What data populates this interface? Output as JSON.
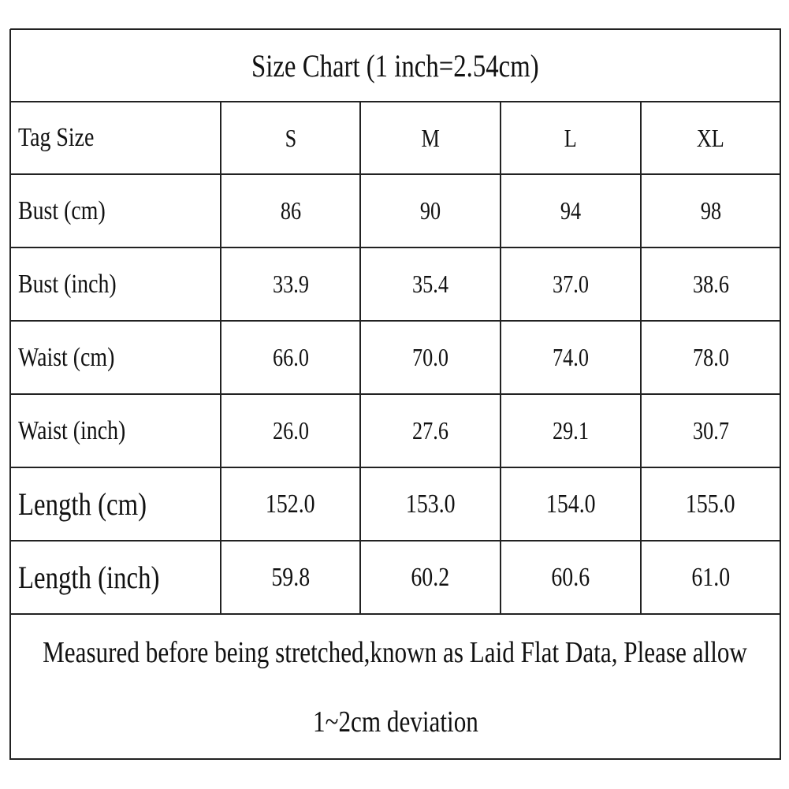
{
  "title": "Size Chart (1 inch=2.54cm)",
  "table": {
    "header": [
      "Tag Size",
      "S",
      "M",
      "L",
      "XL"
    ],
    "rows": [
      [
        "Bust (cm)",
        "86",
        "90",
        "94",
        "98"
      ],
      [
        "Bust (inch)",
        "33.9",
        "35.4",
        "37.0",
        "38.6"
      ],
      [
        "Waist (cm)",
        "66.0",
        "70.0",
        "74.0",
        "78.0"
      ],
      [
        "Waist (inch)",
        "26.0",
        "27.6",
        "29.1",
        "30.7"
      ],
      [
        "Length (cm)",
        "152.0",
        "153.0",
        "154.0",
        "155.0"
      ],
      [
        "Length (inch)",
        "59.8",
        "60.2",
        "60.6",
        "61.0"
      ]
    ]
  },
  "note": [
    "Measured before being stretched,known as Laid Flat Data, Please allow",
    "1~2cm deviation"
  ]
}
